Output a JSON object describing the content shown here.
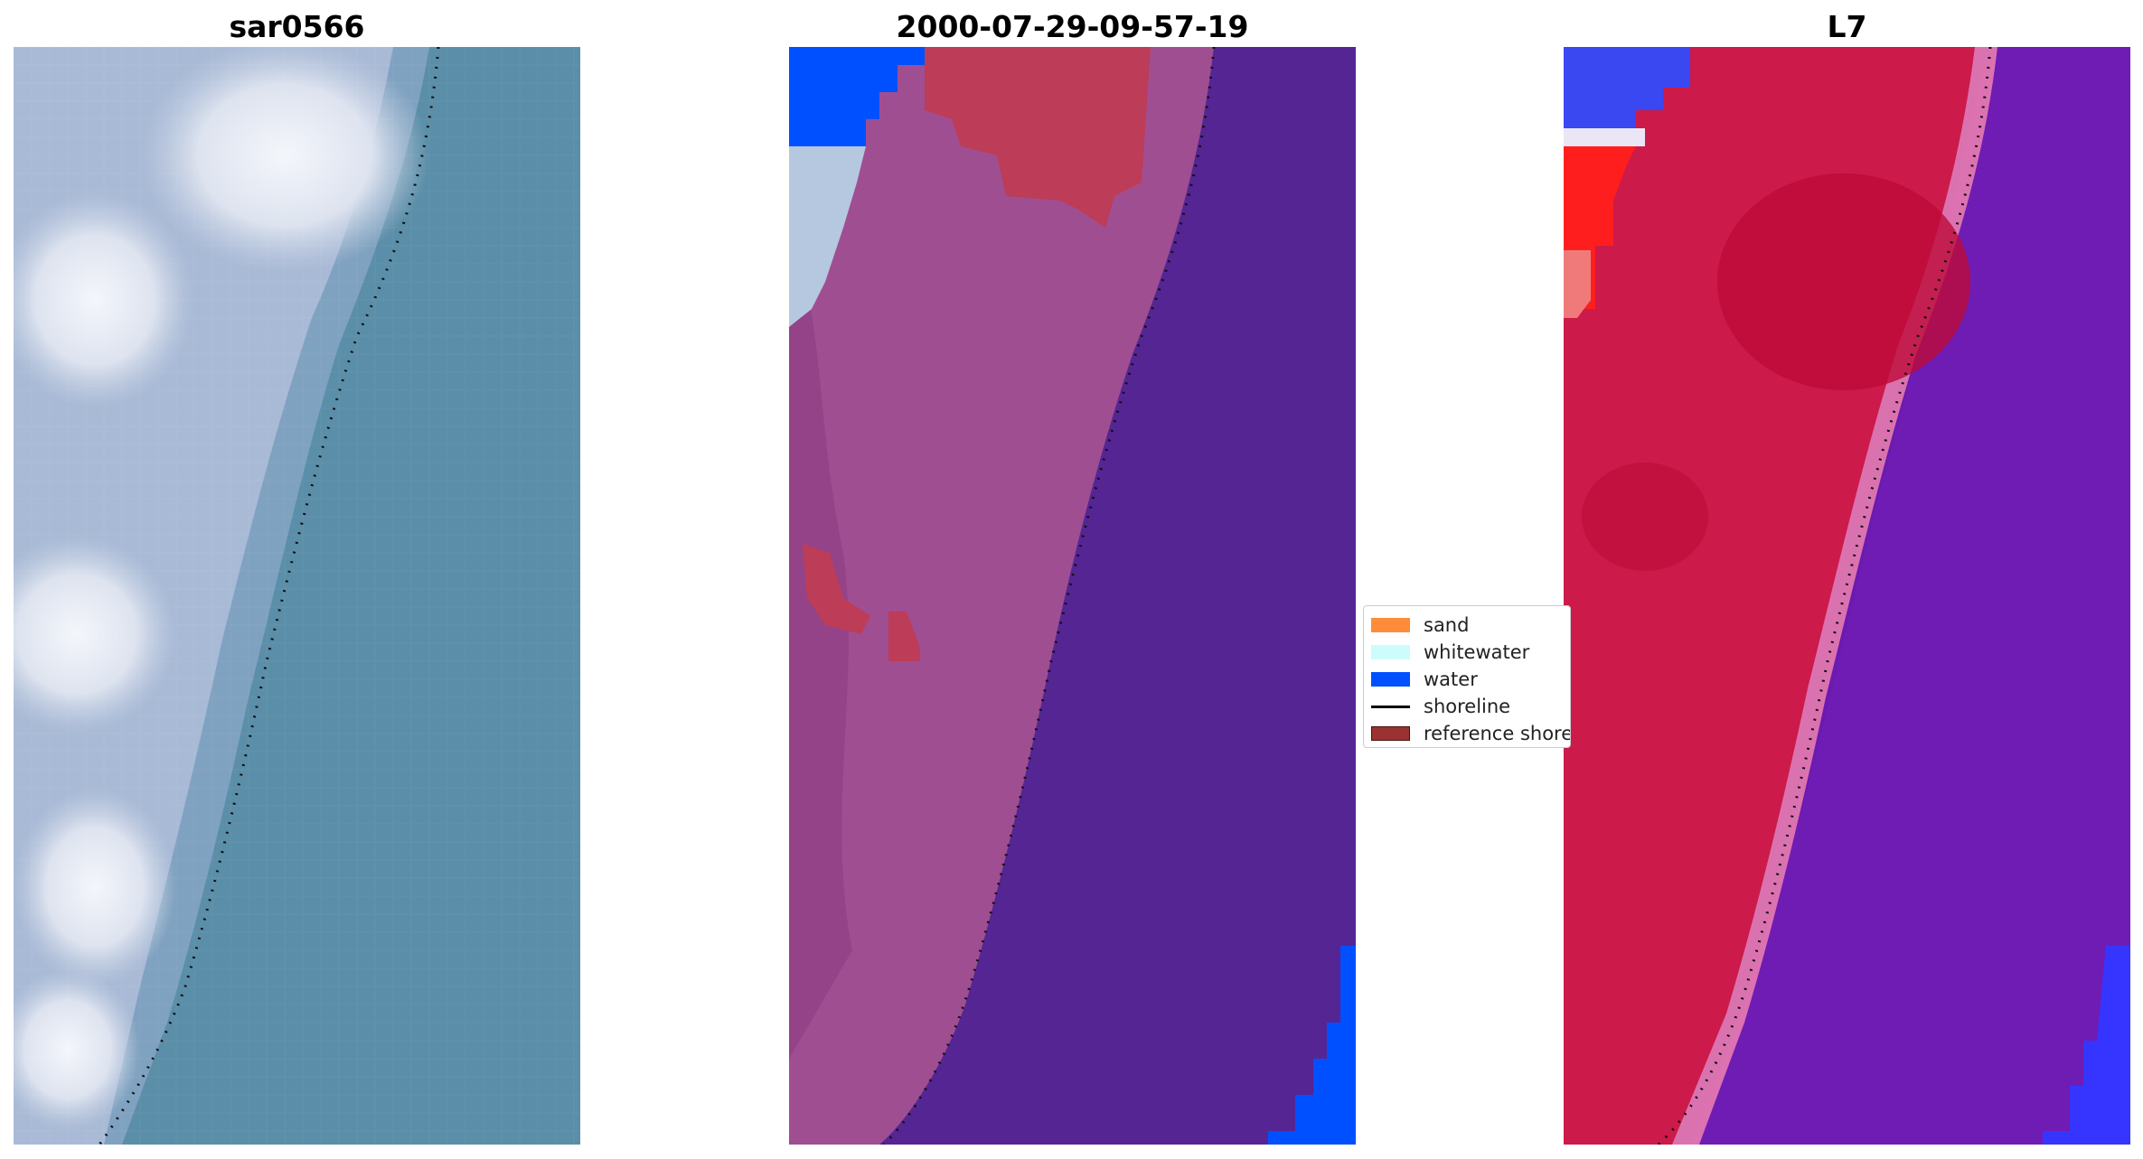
{
  "panels": [
    {
      "title": "sar0566"
    },
    {
      "title": "2000-07-29-09-57-19"
    },
    {
      "title": "L7"
    }
  ],
  "legend": {
    "items": [
      {
        "label": "sand",
        "color": "#ff8c3a"
      },
      {
        "label": "whitewater",
        "color": "#ccfcfc"
      },
      {
        "label": "water",
        "color": "#0050ff"
      },
      {
        "label": "shoreline",
        "color": "#000000"
      },
      {
        "label": "reference shoreline",
        "color": "#9a3232"
      }
    ]
  }
}
